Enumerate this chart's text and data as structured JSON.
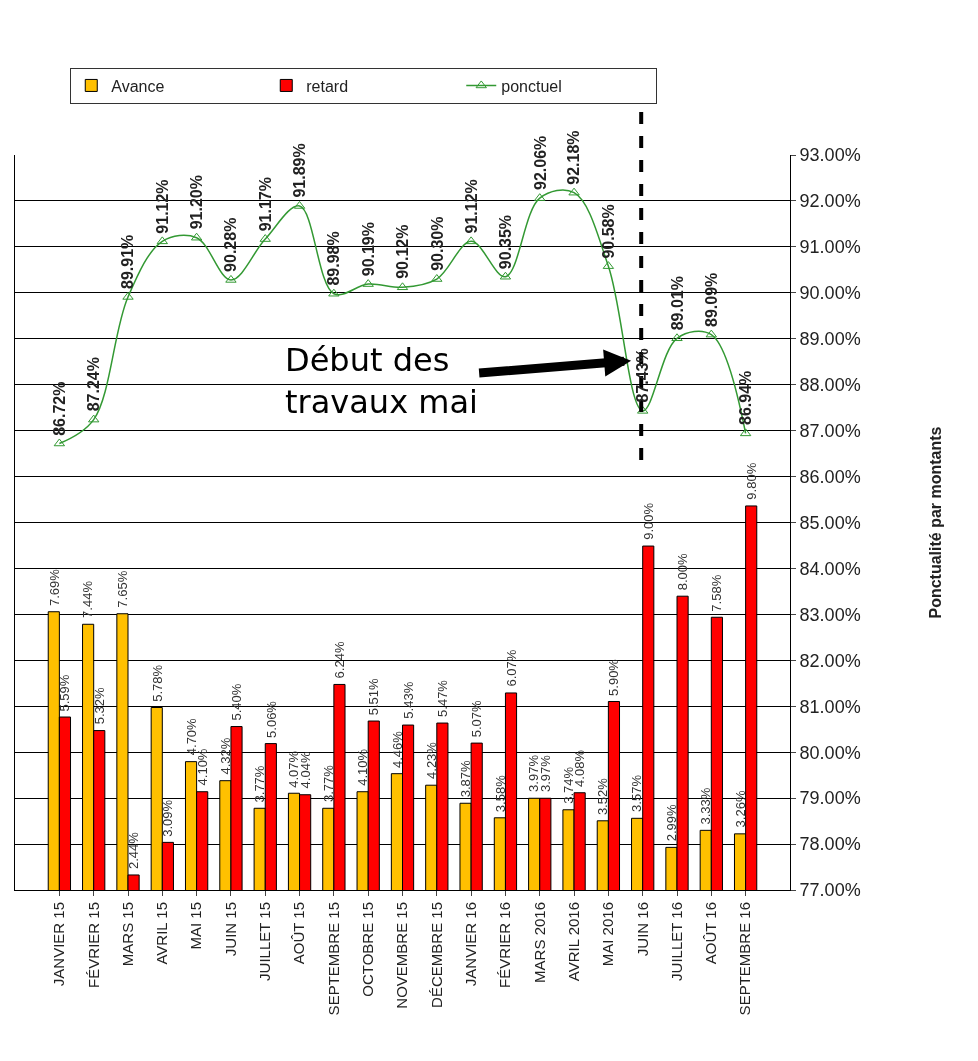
{
  "chart_data": {
    "type": "bar",
    "categories": [
      "JANVIER 15",
      "FÉVRIER 15",
      "MARS 15",
      "AVRIL 15",
      "MAI 15",
      "JUIN 15",
      "JUILLET 15",
      "AOÛT 15",
      "SEPTEMBRE 15",
      "OCTOBRE 15",
      "NOVEMBRE 15",
      "DÉCEMBRE 15",
      "JANVIER 16",
      "FÉVRIER 16",
      "MARS 2016",
      "AVRIL 2016",
      "MAI 2016",
      "JUIN 16",
      "JUILLET 16",
      "AOÛT 16",
      "SEPTEMBRE 16"
    ],
    "series": [
      {
        "name": "Avance",
        "color": "#ffc000",
        "values": [
          7.69,
          7.44,
          7.65,
          5.78,
          4.7,
          4.32,
          3.77,
          4.07,
          3.77,
          4.1,
          4.46,
          4.23,
          3.87,
          3.58,
          3.97,
          3.74,
          3.52,
          3.57,
          2.99,
          3.33,
          3.26
        ],
        "value_labels": [
          "7.69%",
          "7.44%",
          "7.65%",
          "5.78%",
          "4.70%",
          "4.32%",
          "3.77%",
          "4.07%",
          "3.77%",
          "4.10%",
          "4.46%",
          "4.23%",
          "3.87%",
          "3.58%",
          "3.97%",
          "3.74%",
          "3.52%",
          "3.57%",
          "2.99%",
          "3.33%",
          "3.26%"
        ]
      },
      {
        "name": "retard",
        "color": "#ff0000",
        "values": [
          5.59,
          5.32,
          2.44,
          3.09,
          4.1,
          5.4,
          5.06,
          4.04,
          6.24,
          5.51,
          5.43,
          5.47,
          5.07,
          6.07,
          3.97,
          4.08,
          5.9,
          9.0,
          8.0,
          7.58,
          9.8
        ],
        "value_labels": [
          "5.59%",
          "5.32%",
          "2.44%",
          "3.09%",
          "4.10%",
          "5.40%",
          "5.06%",
          "4.04%",
          "6.24%",
          "5.51%",
          "5.43%",
          "5.47%",
          "5.07%",
          "6.07%",
          "3.97%",
          "4.08%",
          "5.90%",
          "9.00%",
          "8.00%",
          "7.58%",
          "9.80%"
        ]
      },
      {
        "name": "ponctuel",
        "type": "line",
        "axis": "y2",
        "color": "#339933",
        "marker": "triangle",
        "values": [
          86.72,
          87.24,
          89.91,
          91.12,
          91.2,
          90.28,
          91.17,
          91.89,
          89.98,
          90.19,
          90.12,
          90.3,
          91.12,
          90.35,
          92.06,
          92.18,
          90.58,
          87.43,
          89.01,
          89.09,
          86.94
        ],
        "value_labels": [
          "86.72%",
          "87.24%",
          "89.91%",
          "91.12%",
          "91.20%",
          "90.28%",
          "91.17%",
          "91.89%",
          "89.98%",
          "90.19%",
          "90.12%",
          "90.30%",
          "91.12%",
          "90.35%",
          "92.06%",
          "92.18%",
          "90.58%",
          "87.43%",
          "89.01%",
          "89.09%",
          "86.94%"
        ]
      }
    ],
    "ylim": [
      2.14,
      16.8
    ],
    "y2label": "Ponctualité par montants",
    "y2lim": [
      77,
      93
    ],
    "y2ticks": [
      {
        "value": 77,
        "label": "77.00%"
      },
      {
        "value": 78,
        "label": "78.00%"
      },
      {
        "value": 79,
        "label": "79.00%"
      },
      {
        "value": 80,
        "label": "80.00%"
      },
      {
        "value": 81,
        "label": "81.00%"
      },
      {
        "value": 82,
        "label": "82.00%"
      },
      {
        "value": 83,
        "label": "83.00%"
      },
      {
        "value": 84,
        "label": "84.00%"
      },
      {
        "value": 85,
        "label": "85.00%"
      },
      {
        "value": 86,
        "label": "86.00%"
      },
      {
        "value": 87,
        "label": "87.00%"
      },
      {
        "value": 88,
        "label": "88.00%"
      },
      {
        "value": 89,
        "label": "89.00%"
      },
      {
        "value": 90,
        "label": "90.00%"
      },
      {
        "value": 91,
        "label": "91.00%"
      },
      {
        "value": 92,
        "label": "92.00%"
      },
      {
        "value": 93,
        "label": "93.00%"
      }
    ],
    "annotations": [
      "Début des travaux mai"
    ],
    "grid": "y",
    "legend": "top"
  }
}
